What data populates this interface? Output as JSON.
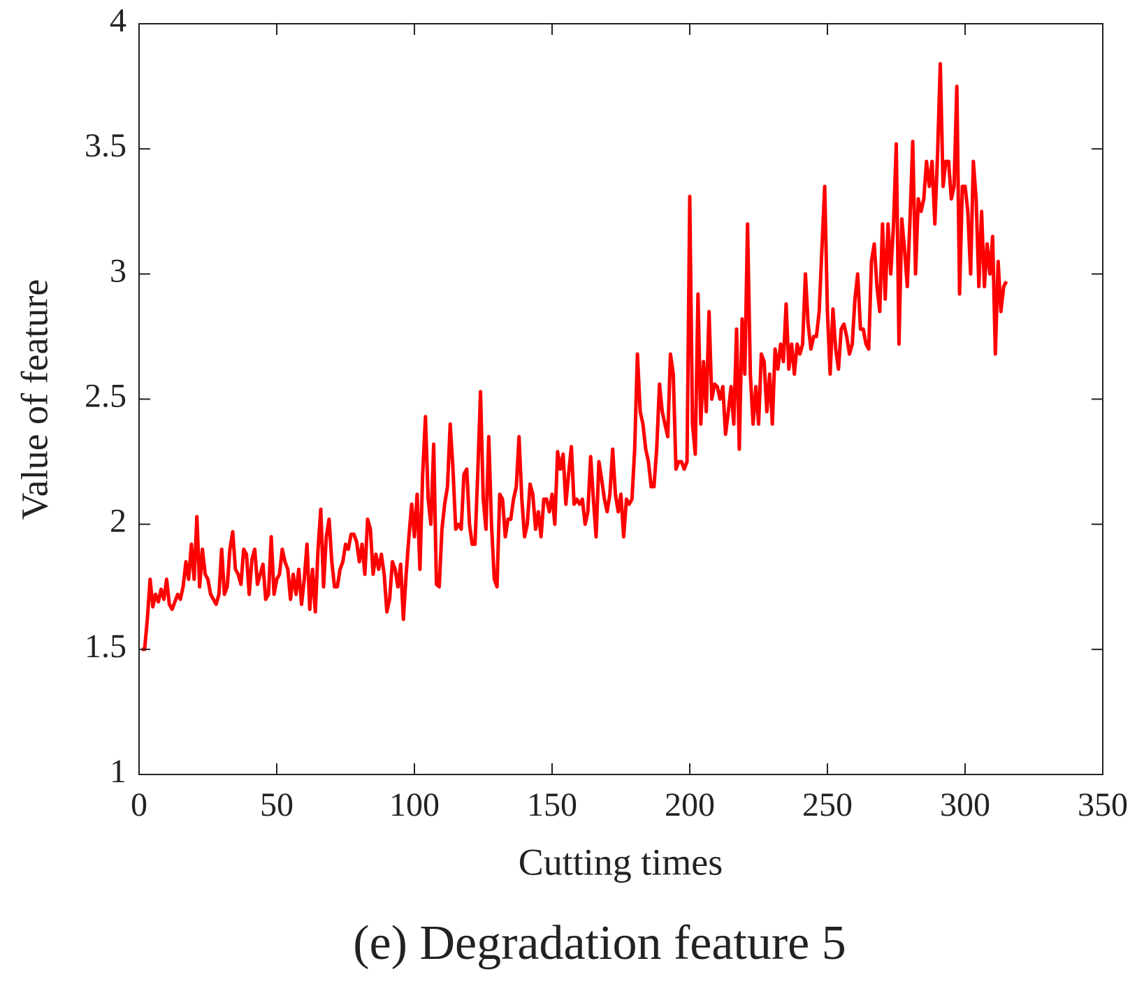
{
  "chart_data": {
    "type": "line",
    "title": "(e) Degradation feature 5",
    "xlabel": "Cutting times",
    "ylabel": "Value of feature",
    "xlim": [
      0,
      350
    ],
    "xticks": [
      0,
      50,
      100,
      150,
      200,
      250,
      300,
      350
    ],
    "ylim": [
      1,
      4
    ],
    "yticks": [
      1,
      1.5,
      2,
      2.5,
      3,
      3.5,
      4
    ],
    "grid": false,
    "series": [
      {
        "color": "#ff0000",
        "x": [
          1,
          2,
          3,
          4,
          5,
          6,
          7,
          8,
          9,
          10,
          11,
          12,
          13,
          14,
          15,
          16,
          17,
          18,
          19,
          20,
          21,
          22,
          23,
          24,
          25,
          26,
          27,
          28,
          29,
          30,
          31,
          32,
          33,
          34,
          35,
          36,
          37,
          38,
          39,
          40,
          41,
          42,
          43,
          44,
          45,
          46,
          47,
          48,
          49,
          50,
          51,
          52,
          53,
          54,
          55,
          56,
          57,
          58,
          59,
          60,
          61,
          62,
          63,
          64,
          65,
          66,
          67,
          68,
          69,
          70,
          71,
          72,
          73,
          74,
          75,
          76,
          77,
          78,
          79,
          80,
          81,
          82,
          83,
          84,
          85,
          86,
          87,
          88,
          89,
          90,
          91,
          92,
          93,
          94,
          95,
          96,
          97,
          98,
          99,
          100,
          101,
          102,
          103,
          104,
          105,
          106,
          107,
          108,
          109,
          110,
          111,
          112,
          113,
          114,
          115,
          116,
          117,
          118,
          119,
          120,
          121,
          122,
          123,
          124,
          125,
          126,
          127,
          128,
          129,
          130,
          131,
          132,
          133,
          134,
          135,
          136,
          137,
          138,
          139,
          140,
          141,
          142,
          143,
          144,
          145,
          146,
          147,
          148,
          149,
          150,
          151,
          152,
          153,
          154,
          155,
          156,
          157,
          158,
          159,
          160,
          161,
          162,
          163,
          164,
          165,
          166,
          167,
          168,
          169,
          170,
          171,
          172,
          173,
          174,
          175,
          176,
          177,
          178,
          179,
          180,
          181,
          182,
          183,
          184,
          185,
          186,
          187,
          188,
          189,
          190,
          191,
          192,
          193,
          194,
          195,
          196,
          197,
          198,
          199,
          200,
          201,
          202,
          203,
          204,
          205,
          206,
          207,
          208,
          209,
          210,
          211,
          212,
          213,
          214,
          215,
          216,
          217,
          218,
          219,
          220,
          221,
          222,
          223,
          224,
          225,
          226,
          227,
          228,
          229,
          230,
          231,
          232,
          233,
          234,
          235,
          236,
          237,
          238,
          239,
          240,
          241,
          242,
          243,
          244,
          245,
          246,
          247,
          248,
          249,
          250,
          251,
          252,
          253,
          254,
          255,
          256,
          257,
          258,
          259,
          260,
          261,
          262,
          263,
          264,
          265,
          266,
          267,
          268,
          269,
          270,
          271,
          272,
          273,
          274,
          275,
          276,
          277,
          278,
          279,
          280,
          281,
          282,
          283,
          284,
          285,
          286,
          287,
          288,
          289,
          290,
          291,
          292,
          293,
          294,
          295,
          296,
          297,
          298,
          299,
          300,
          301,
          302,
          303,
          304,
          305,
          306,
          307,
          308,
          309,
          310,
          311,
          312,
          313,
          314,
          315
        ],
        "values": [
          1.5,
          1.5,
          1.62,
          1.78,
          1.67,
          1.72,
          1.69,
          1.74,
          1.7,
          1.78,
          1.68,
          1.66,
          1.69,
          1.72,
          1.7,
          1.75,
          1.85,
          1.78,
          1.92,
          1.78,
          2.03,
          1.75,
          1.9,
          1.8,
          1.78,
          1.72,
          1.7,
          1.68,
          1.72,
          1.9,
          1.72,
          1.75,
          1.9,
          1.97,
          1.82,
          1.8,
          1.76,
          1.9,
          1.88,
          1.72,
          1.86,
          1.9,
          1.76,
          1.8,
          1.84,
          1.7,
          1.72,
          1.95,
          1.72,
          1.78,
          1.8,
          1.9,
          1.85,
          1.82,
          1.7,
          1.8,
          1.72,
          1.82,
          1.68,
          1.78,
          1.92,
          1.66,
          1.82,
          1.65,
          1.9,
          2.06,
          1.75,
          1.95,
          2.02,
          1.85,
          1.75,
          1.75,
          1.82,
          1.85,
          1.92,
          1.9,
          1.96,
          1.96,
          1.93,
          1.85,
          1.92,
          1.8,
          2.02,
          1.98,
          1.8,
          1.88,
          1.82,
          1.88,
          1.8,
          1.65,
          1.7,
          1.85,
          1.82,
          1.75,
          1.84,
          1.62,
          1.8,
          1.95,
          2.08,
          1.95,
          2.12,
          1.82,
          2.2,
          2.43,
          2.1,
          2.0,
          2.32,
          1.76,
          1.75,
          1.98,
          2.08,
          2.15,
          2.4,
          2.22,
          1.98,
          2.0,
          1.98,
          2.2,
          2.22,
          2.0,
          1.92,
          1.92,
          2.2,
          2.53,
          2.1,
          1.98,
          2.35,
          2.0,
          1.78,
          1.75,
          2.12,
          2.1,
          1.95,
          2.02,
          2.02,
          2.1,
          2.15,
          2.35,
          2.1,
          1.95,
          2.0,
          2.16,
          2.12,
          1.98,
          2.05,
          1.95,
          2.1,
          2.1,
          2.05,
          2.12,
          2.0,
          2.29,
          2.22,
          2.28,
          2.08,
          2.2,
          2.31,
          2.08,
          2.1,
          2.08,
          2.1,
          2.0,
          2.05,
          2.27,
          2.1,
          1.95,
          2.25,
          2.18,
          2.1,
          2.05,
          2.12,
          2.3,
          2.12,
          2.05,
          2.12,
          1.95,
          2.1,
          2.08,
          2.1,
          2.3,
          2.68,
          2.45,
          2.4,
          2.3,
          2.25,
          2.15,
          2.15,
          2.3,
          2.56,
          2.45,
          2.4,
          2.35,
          2.68,
          2.6,
          2.22,
          2.25,
          2.25,
          2.22,
          2.25,
          3.31,
          2.4,
          2.28,
          2.92,
          2.4,
          2.65,
          2.45,
          2.85,
          2.5,
          2.56,
          2.55,
          2.5,
          2.55,
          2.36,
          2.45,
          2.55,
          2.4,
          2.78,
          2.3,
          2.82,
          2.6,
          3.2,
          2.6,
          2.4,
          2.55,
          2.4,
          2.68,
          2.65,
          2.45,
          2.6,
          2.4,
          2.7,
          2.62,
          2.72,
          2.65,
          2.88,
          2.62,
          2.72,
          2.6,
          2.72,
          2.68,
          2.72,
          3.0,
          2.8,
          2.7,
          2.75,
          2.75,
          2.85,
          3.1,
          3.35,
          2.85,
          2.6,
          2.86,
          2.7,
          2.62,
          2.78,
          2.8,
          2.75,
          2.68,
          2.72,
          2.9,
          3.0,
          2.78,
          2.78,
          2.72,
          2.7,
          3.05,
          3.12,
          2.95,
          2.85,
          3.2,
          2.9,
          3.2,
          3.0,
          3.2,
          3.52,
          2.72,
          3.22,
          3.1,
          2.95,
          3.22,
          3.53,
          3.0,
          3.3,
          3.25,
          3.3,
          3.45,
          3.35,
          3.45,
          3.2,
          3.48,
          3.84,
          3.35,
          3.45,
          3.45,
          3.3,
          3.35,
          3.75,
          2.92,
          3.35,
          3.35,
          3.25,
          3.0,
          3.45,
          3.3,
          2.95,
          3.25,
          2.95,
          3.12,
          3.0,
          3.15,
          2.68,
          3.05,
          2.85,
          2.95,
          2.97
        ]
      }
    ]
  }
}
